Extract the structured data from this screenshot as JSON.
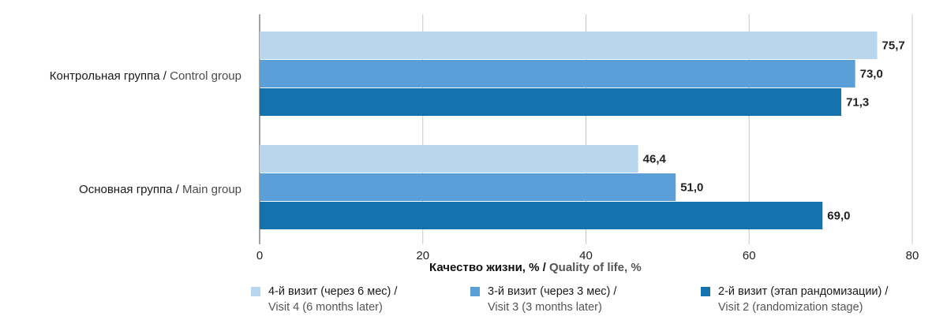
{
  "chart_data": {
    "type": "bar",
    "orientation": "horizontal",
    "categories": [
      {
        "ru": "Контрольная группа /",
        "en": "Control group"
      },
      {
        "ru": "Основная группа /",
        "en": "Main group"
      }
    ],
    "series": [
      {
        "name_ru": "4-й визит (через 6 мес) /",
        "name_en": "Visit 4 (6 months later)",
        "color": "#b8d6ee",
        "values": [
          75.7,
          46.4
        ],
        "labels": [
          "75,7",
          "46,4"
        ]
      },
      {
        "name_ru": "3-й визит (через 3 мес) /",
        "name_en": "Visit 3 (3 months later)",
        "color": "#5b9fd8",
        "values": [
          73.0,
          51.0
        ],
        "labels": [
          "73,0",
          "51,0"
        ]
      },
      {
        "name_ru": "2-й визит (этап рандомизации) /",
        "name_en": "Visit 2 (randomization stage)",
        "color": "#1472ad",
        "values": [
          71.3,
          69.0
        ],
        "labels": [
          "71,3",
          "69,0"
        ]
      }
    ],
    "xlabel_ru": "Качество жизни, % /",
    "xlabel_en": "Quality of life, %",
    "xlim": [
      0,
      80
    ],
    "xticks": [
      0,
      20,
      40,
      60,
      80
    ],
    "grid": true,
    "legend_position": "bottom"
  },
  "colors": {
    "gridline": "#c8c8c8",
    "axis": "#444444"
  }
}
